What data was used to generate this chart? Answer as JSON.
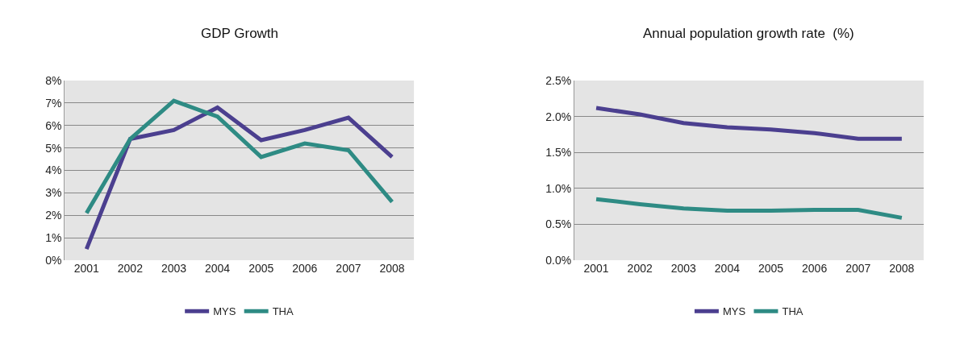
{
  "chart_data": [
    {
      "type": "line",
      "title": "GDP Growth",
      "categories": [
        "2001",
        "2002",
        "2003",
        "2004",
        "2005",
        "2006",
        "2007",
        "2008"
      ],
      "series": [
        {
          "name": "MYS",
          "color": "#4b3f8f",
          "values": [
            0.5,
            5.4,
            5.8,
            6.8,
            5.35,
            5.8,
            6.35,
            4.6
          ]
        },
        {
          "name": "THA",
          "color": "#2e8b84",
          "values": [
            2.1,
            5.4,
            7.1,
            6.4,
            4.6,
            5.2,
            4.9,
            2.6
          ]
        }
      ],
      "ylim": [
        0,
        8
      ],
      "yticks": [
        {
          "value": 0,
          "label": "0%"
        },
        {
          "value": 1,
          "label": "1%"
        },
        {
          "value": 2,
          "label": "2%"
        },
        {
          "value": 3,
          "label": "3%"
        },
        {
          "value": 4,
          "label": "4%"
        },
        {
          "value": 5,
          "label": "5%"
        },
        {
          "value": 6,
          "label": "6%"
        },
        {
          "value": 7,
          "label": "7%"
        },
        {
          "value": 8,
          "label": "8%"
        }
      ],
      "grid": "y",
      "legend": "bottom",
      "marker": "none",
      "line_style": "solid"
    },
    {
      "type": "line",
      "title": "Annual population growth rate  (%)",
      "categories": [
        "2001",
        "2002",
        "2003",
        "2004",
        "2005",
        "2006",
        "2007",
        "2008"
      ],
      "series": [
        {
          "name": "MYS",
          "color": "#4b3f8f",
          "values": [
            2.12,
            2.03,
            1.91,
            1.85,
            1.82,
            1.77,
            1.69,
            1.69
          ]
        },
        {
          "name": "THA",
          "color": "#2e8b84",
          "values": [
            0.85,
            0.78,
            0.72,
            0.69,
            0.69,
            0.7,
            0.7,
            0.59
          ]
        }
      ],
      "ylim": [
        0,
        2.5
      ],
      "yticks": [
        {
          "value": 0,
          "label": "0.0%"
        },
        {
          "value": 0.5,
          "label": "0.5%"
        },
        {
          "value": 1,
          "label": "1.0%"
        },
        {
          "value": 1.5,
          "label": "1.5%"
        },
        {
          "value": 2,
          "label": "2.0%"
        },
        {
          "value": 2.5,
          "label": "2.5%"
        }
      ],
      "grid": "y",
      "legend": "bottom",
      "marker": "none",
      "line_style": "solid"
    }
  ]
}
